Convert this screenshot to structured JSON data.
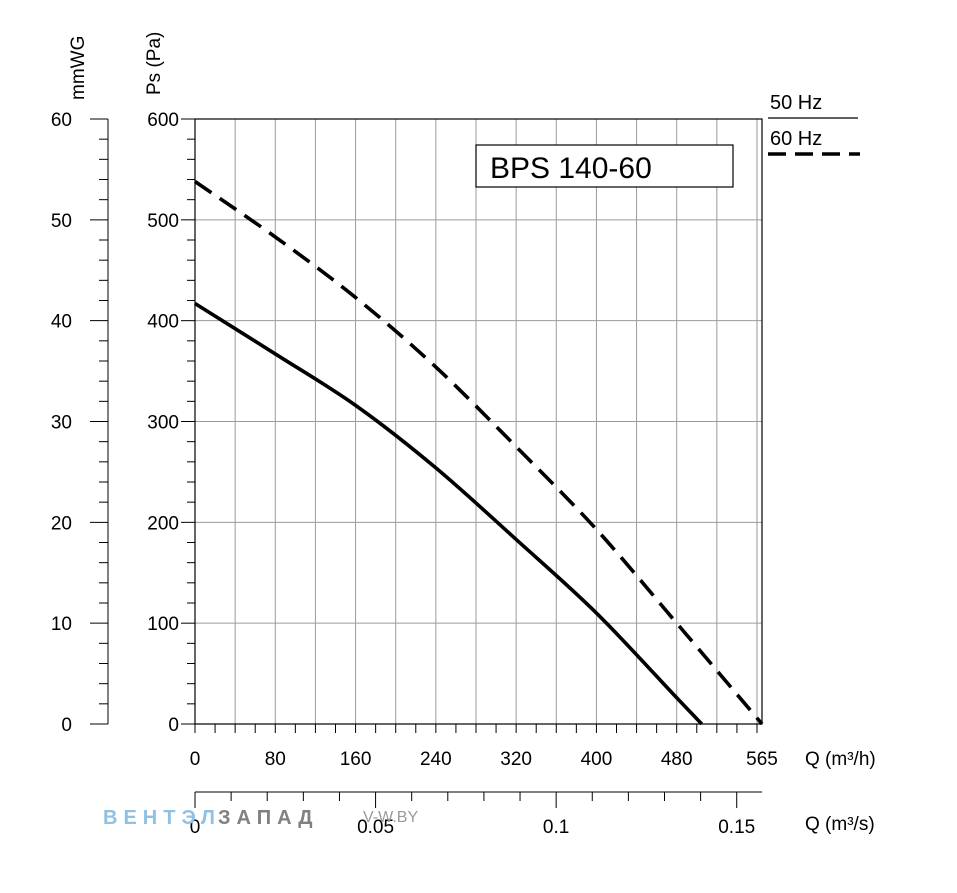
{
  "chart_data": {
    "type": "line",
    "title": "BPS 140-60",
    "x_axis": {
      "label": "Q (m³/h)",
      "range": [
        0,
        565
      ],
      "tick_values": [
        0,
        80,
        160,
        240,
        320,
        400,
        480,
        565
      ],
      "tick_labels": [
        "0",
        "80",
        "160",
        "240",
        "320",
        "400",
        "480",
        "565"
      ],
      "grid_step": 40
    },
    "x2_axis": {
      "label": "Q (m³/s)",
      "range": [
        0,
        0.157
      ],
      "tick_values": [
        0,
        0.05,
        0.1,
        0.15
      ],
      "tick_labels": [
        "0",
        "0.05",
        "0.1",
        "0.15"
      ]
    },
    "y_axis": {
      "label": "Ps (Pa)",
      "range": [
        0,
        600
      ],
      "tick_values": [
        0,
        100,
        200,
        300,
        400,
        500,
        600
      ],
      "tick_labels": [
        "0",
        "100",
        "200",
        "300",
        "400",
        "500",
        "600"
      ],
      "grid_step": 100
    },
    "y2_axis": {
      "label": "mmWG",
      "range": [
        0,
        60
      ],
      "tick_values": [
        0,
        10,
        20,
        30,
        40,
        50,
        60
      ],
      "tick_labels": [
        "0",
        "10",
        "20",
        "30",
        "40",
        "50",
        "60"
      ]
    },
    "grid": true,
    "legend_position": "top-right",
    "series": [
      {
        "name": "50 Hz",
        "style": "solid",
        "color": "#000000",
        "x": [
          0,
          80,
          160,
          240,
          320,
          400,
          480,
          505
        ],
        "y": [
          417,
          367,
          316,
          254,
          183,
          110,
          26,
          0
        ]
      },
      {
        "name": "60 Hz",
        "style": "dashed",
        "color": "#000000",
        "x": [
          0,
          80,
          160,
          240,
          320,
          400,
          480,
          565
        ],
        "y": [
          538,
          483,
          423,
          354,
          275,
          193,
          100,
          0
        ]
      }
    ]
  },
  "watermark": {
    "brand_part1": "ВЕНТЭЛ",
    "brand_part2": "ЗАПАД",
    "url": "V-W.BY"
  }
}
